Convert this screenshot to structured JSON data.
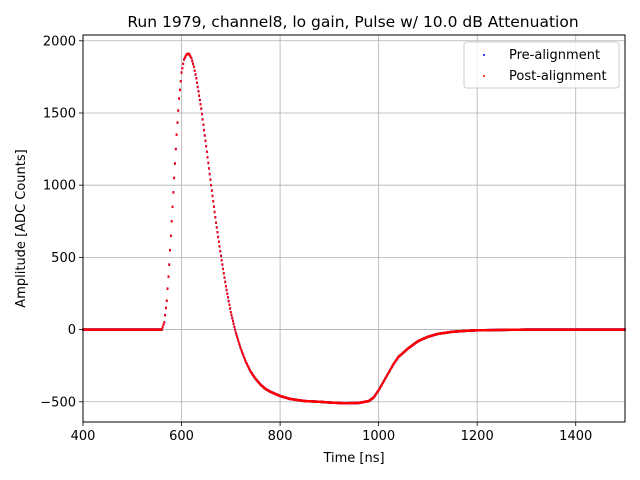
{
  "chart_data": {
    "type": "scatter",
    "title": "Run 1979, channel8, lo gain, Pulse w/ 10.0 dB Attenuation",
    "xlabel": "Time [ns]",
    "ylabel": "Amplitude [ADC Counts]",
    "xlim": [
      400,
      1500
    ],
    "ylim": [
      -640,
      2040
    ],
    "xticks": [
      400,
      600,
      800,
      1000,
      1200,
      1400
    ],
    "yticks": [
      -500,
      0,
      500,
      1000,
      1500,
      2000
    ],
    "xtick_labels": [
      "400",
      "600",
      "800",
      "1000",
      "1200",
      "1400"
    ],
    "ytick_labels": [
      "−500",
      "0",
      "500",
      "1000",
      "1500",
      "2000"
    ],
    "grid": true,
    "legend_position": "top-right",
    "series": [
      {
        "name": "Pre-alignment",
        "color": "#0000ff",
        "x": [
          400,
          500,
          560,
          565,
          570,
          575,
          580,
          585,
          590,
          595,
          600,
          605,
          610,
          615,
          620,
          625,
          630,
          640,
          650,
          660,
          670,
          680,
          690,
          700,
          710,
          720,
          730,
          740,
          750,
          760,
          770,
          780,
          800,
          820,
          850,
          880,
          900,
          930,
          960,
          980,
          990,
          1000,
          1010,
          1020,
          1030,
          1040,
          1060,
          1080,
          1100,
          1120,
          1150,
          1180,
          1200,
          1300,
          1400,
          1500
        ],
        "y": [
          0,
          0,
          0,
          50,
          200,
          450,
          750,
          1050,
          1350,
          1600,
          1780,
          1870,
          1905,
          1910,
          1880,
          1820,
          1740,
          1530,
          1270,
          1000,
          740,
          510,
          300,
          120,
          -20,
          -130,
          -220,
          -290,
          -340,
          -380,
          -410,
          -430,
          -460,
          -480,
          -495,
          -500,
          -505,
          -510,
          -508,
          -495,
          -470,
          -420,
          -360,
          -300,
          -240,
          -190,
          -130,
          -80,
          -50,
          -30,
          -15,
          -8,
          -5,
          0,
          0,
          0
        ]
      },
      {
        "name": "Post-alignment",
        "color": "#ff0000",
        "x": [
          400,
          500,
          560,
          565,
          570,
          575,
          580,
          585,
          590,
          595,
          600,
          605,
          610,
          615,
          620,
          625,
          630,
          640,
          650,
          660,
          670,
          680,
          690,
          700,
          710,
          720,
          730,
          740,
          750,
          760,
          770,
          780,
          800,
          820,
          850,
          880,
          900,
          930,
          960,
          980,
          990,
          1000,
          1010,
          1020,
          1030,
          1040,
          1060,
          1080,
          1100,
          1120,
          1150,
          1180,
          1200,
          1300,
          1400,
          1500
        ],
        "y": [
          0,
          0,
          0,
          50,
          200,
          450,
          750,
          1050,
          1350,
          1600,
          1780,
          1870,
          1905,
          1910,
          1880,
          1820,
          1740,
          1530,
          1270,
          1000,
          740,
          510,
          300,
          120,
          -20,
          -130,
          -220,
          -290,
          -340,
          -380,
          -410,
          -430,
          -460,
          -480,
          -495,
          -500,
          -505,
          -510,
          -508,
          -495,
          -470,
          -420,
          -360,
          -300,
          -240,
          -190,
          -130,
          -80,
          -50,
          -30,
          -15,
          -8,
          -5,
          0,
          0,
          0
        ]
      }
    ]
  }
}
